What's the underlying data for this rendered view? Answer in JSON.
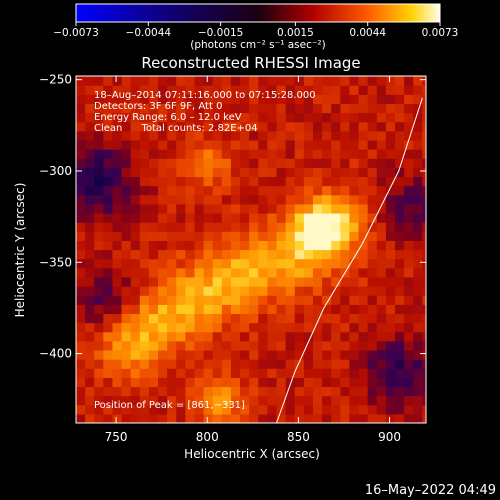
{
  "chart_data": {
    "type": "heatmap",
    "title": "Reconstructed RHESSI Image",
    "xlabel": "Heliocentric X (arcsec)",
    "ylabel": "Heliocentric Y (arcsec)",
    "xlim": [
      728,
      920
    ],
    "ylim": [
      -438,
      -248
    ],
    "xticks": [
      750,
      800,
      850,
      900
    ],
    "yticks": [
      -250,
      -300,
      -350,
      -400
    ],
    "xtick_labels": [
      "750",
      "800",
      "850",
      "900"
    ],
    "ytick_labels": [
      "−250",
      "−300",
      "−350",
      "−400"
    ],
    "colorbar": {
      "min": -0.0073,
      "max": 0.0073,
      "ticks": [
        -0.0073,
        -0.0044,
        -0.0015,
        0.0015,
        0.0044,
        0.0073
      ],
      "tick_labels": [
        "−0.0073",
        "−0.0044",
        "−0.0015",
        "0.0015",
        "0.0044",
        "0.0073"
      ],
      "unit_label": "(photons cm⁻² s⁻¹ asec⁻²)"
    },
    "annotations": [
      "18–Aug–2014 07:11:16.000 to 07:15:28.000",
      "Detectors: 3F 6F 9F, Att 0",
      "Energy Range: 6.0 – 12.0 keV",
      "Clean      Total counts: 2.82E+04"
    ],
    "peak_label": "Position of Peak = [861,−331]",
    "peak_position": [
      861,
      -331
    ],
    "limb_curve": [
      [
        918,
        -260
      ],
      [
        905,
        -300
      ],
      [
        885,
        -340
      ],
      [
        864,
        -375
      ],
      [
        848,
        -410
      ],
      [
        838,
        -438
      ]
    ],
    "bright_ridge": [
      [
        758,
        -392
      ],
      [
        790,
        -372
      ],
      [
        820,
        -355
      ],
      [
        850,
        -345
      ],
      [
        870,
        -330
      ]
    ]
  },
  "footer": {
    "timestamp": "16–May–2022 04:49"
  }
}
